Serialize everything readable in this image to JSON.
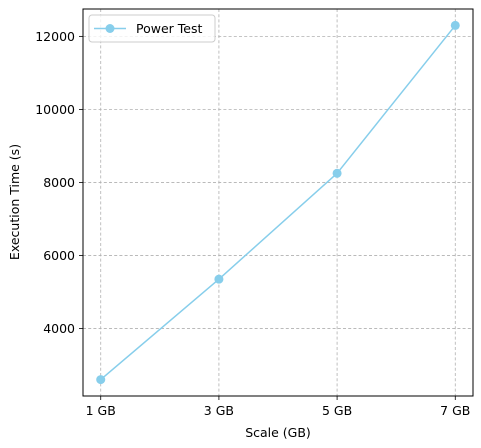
{
  "chart_data": {
    "type": "line",
    "title": "",
    "xlabel": "Scale (GB)",
    "ylabel": "Execution Time (s)",
    "categories": [
      "1 GB",
      "3 GB",
      "5 GB",
      "7 GB"
    ],
    "series": [
      {
        "name": "Power Test",
        "values": [
          2600,
          5350,
          8250,
          12300
        ],
        "color": "#87ceeb",
        "marker": "circle"
      }
    ],
    "ylim": [
      2150,
      12750
    ],
    "yticks": [
      4000,
      6000,
      8000,
      10000,
      12000
    ],
    "grid": true,
    "grid_style": "dashed",
    "legend_position": "upper-left"
  }
}
